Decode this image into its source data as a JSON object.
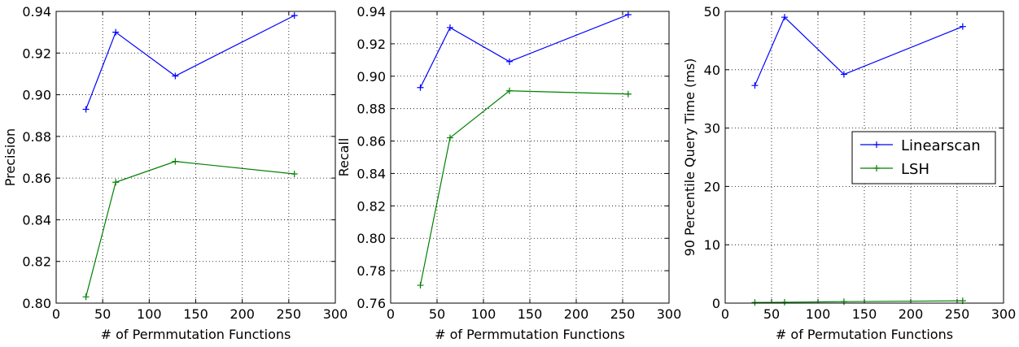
{
  "chart_data": [
    {
      "type": "line",
      "xlabel": "# of Permmutation Functions",
      "ylabel": "Precision",
      "xlim": [
        0,
        300
      ],
      "ylim": [
        0.8,
        0.94
      ],
      "xticks": [
        0,
        50,
        100,
        150,
        200,
        250,
        300
      ],
      "xtick_labels": [
        "0",
        "50",
        "100",
        "150",
        "200",
        "250",
        "300"
      ],
      "yticks": [
        0.8,
        0.82,
        0.84,
        0.86,
        0.88,
        0.9,
        0.92,
        0.94
      ],
      "ytick_labels": [
        "0.80",
        "0.82",
        "0.84",
        "0.86",
        "0.88",
        "0.90",
        "0.92",
        "0.94"
      ],
      "grid": true,
      "marker": "+",
      "x": [
        32,
        64,
        128,
        256
      ],
      "series": [
        {
          "color": "#0000ff",
          "values": [
            0.893,
            0.93,
            0.909,
            0.938
          ]
        },
        {
          "color": "#008000",
          "values": [
            0.803,
            0.858,
            0.868,
            0.862
          ]
        }
      ]
    },
    {
      "type": "line",
      "xlabel": "# of Permmutation Functions",
      "ylabel": "Recall",
      "xlim": [
        0,
        300
      ],
      "ylim": [
        0.76,
        0.94
      ],
      "xticks": [
        0,
        50,
        100,
        150,
        200,
        250,
        300
      ],
      "xtick_labels": [
        "0",
        "50",
        "100",
        "150",
        "200",
        "250",
        "300"
      ],
      "yticks": [
        0.76,
        0.78,
        0.8,
        0.82,
        0.84,
        0.86,
        0.88,
        0.9,
        0.92,
        0.94
      ],
      "ytick_labels": [
        "0.76",
        "0.78",
        "0.80",
        "0.82",
        "0.84",
        "0.86",
        "0.88",
        "0.90",
        "0.92",
        "0.94"
      ],
      "grid": true,
      "marker": "+",
      "x": [
        32,
        64,
        128,
        256
      ],
      "series": [
        {
          "color": "#0000ff",
          "values": [
            0.893,
            0.93,
            0.909,
            0.938
          ]
        },
        {
          "color": "#008000",
          "values": [
            0.771,
            0.862,
            0.891,
            0.889
          ]
        }
      ]
    },
    {
      "type": "line",
      "xlabel": "# of Permutation Functions",
      "ylabel": "90 Percentile Query Time (ms)",
      "xlim": [
        0,
        300
      ],
      "ylim": [
        0,
        50
      ],
      "xticks": [
        0,
        50,
        100,
        150,
        200,
        250,
        300
      ],
      "xtick_labels": [
        "0",
        "50",
        "100",
        "150",
        "200",
        "250",
        "300"
      ],
      "yticks": [
        0,
        10,
        20,
        30,
        40,
        50
      ],
      "ytick_labels": [
        "0",
        "10",
        "20",
        "30",
        "40",
        "50"
      ],
      "grid": true,
      "marker": "+",
      "legend": "center-right",
      "x": [
        32,
        64,
        128,
        256
      ],
      "series": [
        {
          "name": "Linearscan",
          "color": "#0000ff",
          "values": [
            37.3,
            49.0,
            39.2,
            47.4
          ]
        },
        {
          "name": "LSH",
          "color": "#008000",
          "values": [
            0.1,
            0.15,
            0.25,
            0.4
          ]
        }
      ]
    }
  ]
}
